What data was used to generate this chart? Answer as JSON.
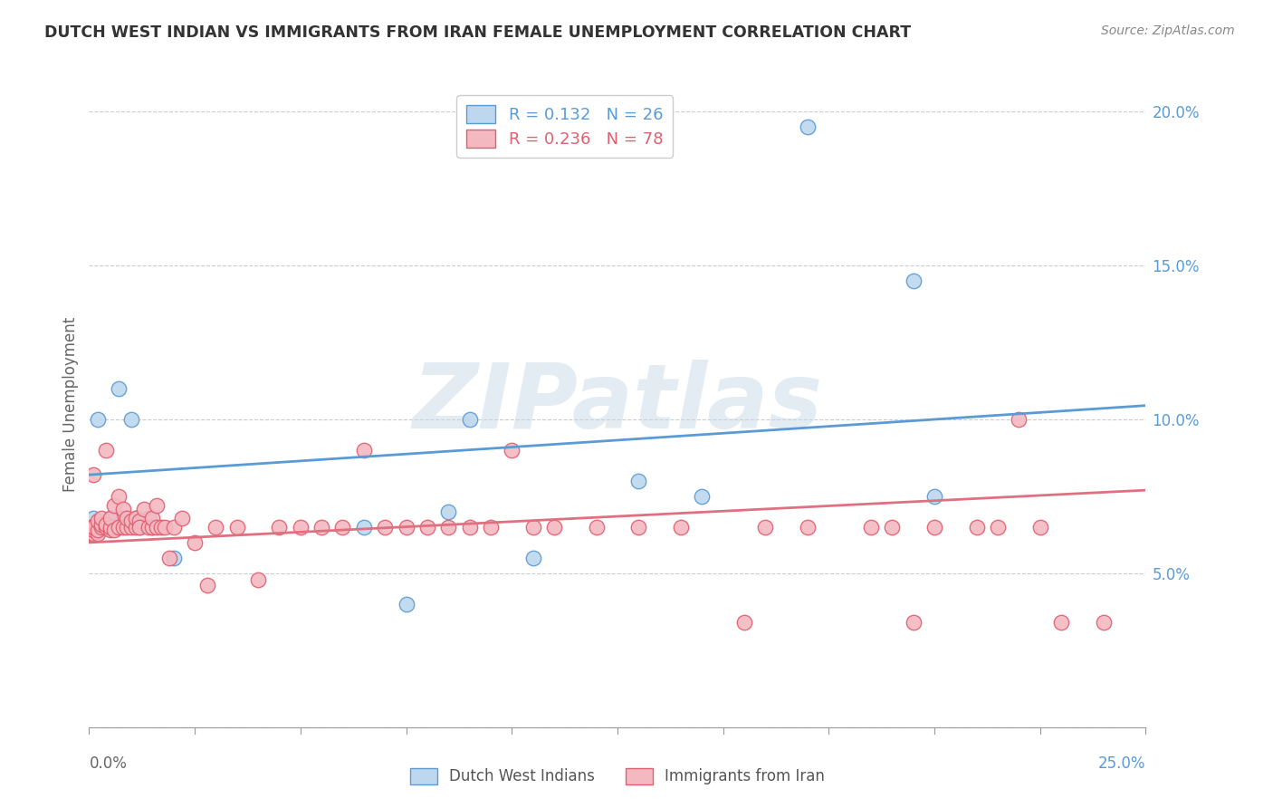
{
  "title": "DUTCH WEST INDIAN VS IMMIGRANTS FROM IRAN FEMALE UNEMPLOYMENT CORRELATION CHART",
  "source": "Source: ZipAtlas.com",
  "ylabel": "Female Unemployment",
  "legend1_label": "Dutch West Indians",
  "legend2_label": "Immigrants from Iran",
  "r1": 0.132,
  "n1": 26,
  "r2": 0.236,
  "n2": 78,
  "color_blue_fill": "#BDD7EE",
  "color_blue_edge": "#5B9BD5",
  "color_pink_fill": "#F4B8C1",
  "color_pink_edge": "#E06070",
  "color_blue_line": "#5B9BD5",
  "color_pink_line": "#E07080",
  "watermark_color": "#C8D8E8",
  "xlim": [
    0.0,
    0.25
  ],
  "ylim": [
    0.0,
    0.21
  ],
  "right_ytick_vals": [
    0.05,
    0.1,
    0.15,
    0.2
  ],
  "blue_x": [
    0.001,
    0.001,
    0.002,
    0.002,
    0.003,
    0.004,
    0.005,
    0.006,
    0.007,
    0.008,
    0.01,
    0.011,
    0.012,
    0.014,
    0.015,
    0.02,
    0.065,
    0.075,
    0.085,
    0.09,
    0.105,
    0.13,
    0.145,
    0.17,
    0.195,
    0.2
  ],
  "blue_y": [
    0.063,
    0.068,
    0.065,
    0.1,
    0.066,
    0.065,
    0.068,
    0.065,
    0.11,
    0.068,
    0.1,
    0.068,
    0.065,
    0.068,
    0.065,
    0.055,
    0.065,
    0.04,
    0.07,
    0.1,
    0.055,
    0.08,
    0.075,
    0.195,
    0.145,
    0.075
  ],
  "pink_x": [
    0.0,
    0.0,
    0.001,
    0.001,
    0.001,
    0.001,
    0.002,
    0.002,
    0.002,
    0.003,
    0.003,
    0.003,
    0.004,
    0.004,
    0.004,
    0.005,
    0.005,
    0.005,
    0.006,
    0.006,
    0.007,
    0.007,
    0.008,
    0.008,
    0.009,
    0.009,
    0.01,
    0.01,
    0.011,
    0.011,
    0.012,
    0.012,
    0.013,
    0.014,
    0.015,
    0.015,
    0.016,
    0.016,
    0.017,
    0.018,
    0.019,
    0.02,
    0.022,
    0.025,
    0.028,
    0.03,
    0.035,
    0.04,
    0.045,
    0.05,
    0.055,
    0.06,
    0.065,
    0.07,
    0.075,
    0.08,
    0.085,
    0.09,
    0.095,
    0.1,
    0.105,
    0.11,
    0.12,
    0.13,
    0.14,
    0.155,
    0.16,
    0.17,
    0.185,
    0.19,
    0.195,
    0.2,
    0.21,
    0.215,
    0.22,
    0.225,
    0.23,
    0.24
  ],
  "pink_y": [
    0.063,
    0.065,
    0.063,
    0.064,
    0.065,
    0.082,
    0.063,
    0.064,
    0.067,
    0.065,
    0.066,
    0.068,
    0.065,
    0.066,
    0.09,
    0.064,
    0.065,
    0.068,
    0.064,
    0.072,
    0.065,
    0.075,
    0.065,
    0.071,
    0.065,
    0.068,
    0.065,
    0.067,
    0.065,
    0.068,
    0.067,
    0.065,
    0.071,
    0.065,
    0.065,
    0.068,
    0.065,
    0.072,
    0.065,
    0.065,
    0.055,
    0.065,
    0.068,
    0.06,
    0.046,
    0.065,
    0.065,
    0.048,
    0.065,
    0.065,
    0.065,
    0.065,
    0.09,
    0.065,
    0.065,
    0.065,
    0.065,
    0.065,
    0.065,
    0.09,
    0.065,
    0.065,
    0.065,
    0.065,
    0.065,
    0.034,
    0.065,
    0.065,
    0.065,
    0.065,
    0.034,
    0.065,
    0.065,
    0.065,
    0.1,
    0.065,
    0.034,
    0.034
  ],
  "blue_line_intercept": 0.082,
  "blue_line_slope": 0.09,
  "pink_line_intercept": 0.06,
  "pink_line_slope": 0.068
}
